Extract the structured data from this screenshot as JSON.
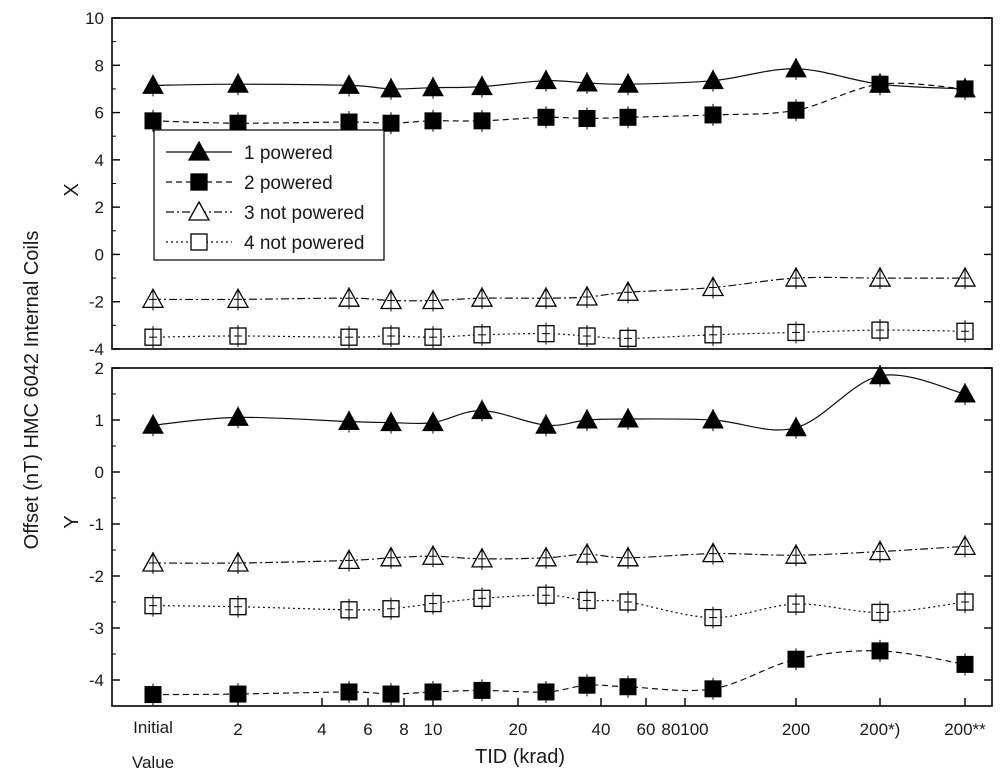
{
  "chart_data": {
    "type": "line",
    "ylabel": "Offset (nT) HMC 6042 Internal Coils",
    "xlabel": "TID (krad)",
    "x_positions": [
      "Initial Value",
      "2",
      "5",
      "7",
      "10",
      "15",
      "25",
      "35",
      "50",
      "100",
      "200",
      "200*)",
      "200**"
    ],
    "x_tick_labels": [
      "Initial",
      "Value",
      "2",
      "4",
      "6",
      "8",
      "10",
      "20",
      "40",
      "60",
      "80100",
      "200",
      "200*)",
      "200**"
    ],
    "panels": [
      {
        "label": "X",
        "ylim": [
          -4,
          10
        ],
        "yticks": [
          "-4",
          "-2",
          "0",
          "2",
          "4",
          "6",
          "8",
          "10"
        ],
        "legend": [
          "1 powered",
          "2 powered",
          "3 not powered",
          "4 not powered"
        ],
        "series": [
          {
            "name": "1 powered",
            "marker": "triangle-filled",
            "style": "solid",
            "values": [
              7.15,
              7.2,
              7.15,
              7.0,
              7.05,
              7.1,
              7.35,
              7.25,
              7.2,
              7.35,
              7.85,
              7.2,
              7.0
            ]
          },
          {
            "name": "2 powered",
            "marker": "square-filled",
            "style": "dashed",
            "values": [
              5.65,
              5.55,
              5.6,
              5.55,
              5.65,
              5.65,
              5.8,
              5.75,
              5.8,
              5.9,
              6.1,
              7.2,
              7.0
            ]
          },
          {
            "name": "3 not powered",
            "marker": "triangle-open",
            "style": "dashdot",
            "values": [
              -1.9,
              -1.9,
              -1.85,
              -1.95,
              -1.95,
              -1.85,
              -1.85,
              -1.8,
              -1.6,
              -1.4,
              -1.0,
              -1.0,
              -1.0
            ]
          },
          {
            "name": "4 not powered",
            "marker": "square-open",
            "style": "dotted",
            "values": [
              -3.5,
              -3.45,
              -3.5,
              -3.45,
              -3.5,
              -3.4,
              -3.35,
              -3.45,
              -3.55,
              -3.4,
              -3.3,
              -3.2,
              -3.25
            ]
          }
        ]
      },
      {
        "label": "Y",
        "ylim": [
          -4.5,
          2
        ],
        "yticks": [
          "-4",
          "-3",
          "-2",
          "-1",
          "0",
          "1",
          "2"
        ],
        "series": [
          {
            "name": "1 powered",
            "marker": "triangle-filled",
            "style": "solid",
            "values": [
              0.9,
              1.05,
              0.97,
              0.95,
              0.95,
              1.18,
              0.9,
              1.0,
              1.02,
              1.0,
              0.85,
              1.85,
              1.5
            ]
          },
          {
            "name": "2 powered",
            "marker": "square-filled",
            "style": "dashed",
            "values": [
              -4.28,
              -4.27,
              -4.23,
              -4.27,
              -4.23,
              -4.2,
              -4.23,
              -4.1,
              -4.13,
              -4.17,
              -3.6,
              -3.44,
              -3.7
            ]
          },
          {
            "name": "3 not powered",
            "marker": "triangle-open",
            "style": "dashdot",
            "values": [
              -1.75,
              -1.75,
              -1.7,
              -1.65,
              -1.62,
              -1.67,
              -1.65,
              -1.58,
              -1.65,
              -1.57,
              -1.6,
              -1.53,
              -1.43
            ]
          },
          {
            "name": "4 not powered",
            "marker": "square-open",
            "style": "dotted",
            "values": [
              -2.57,
              -2.59,
              -2.65,
              -2.63,
              -2.53,
              -2.43,
              -2.37,
              -2.47,
              -2.5,
              -2.8,
              -2.54,
              -2.7,
              -2.5
            ]
          }
        ]
      }
    ]
  }
}
